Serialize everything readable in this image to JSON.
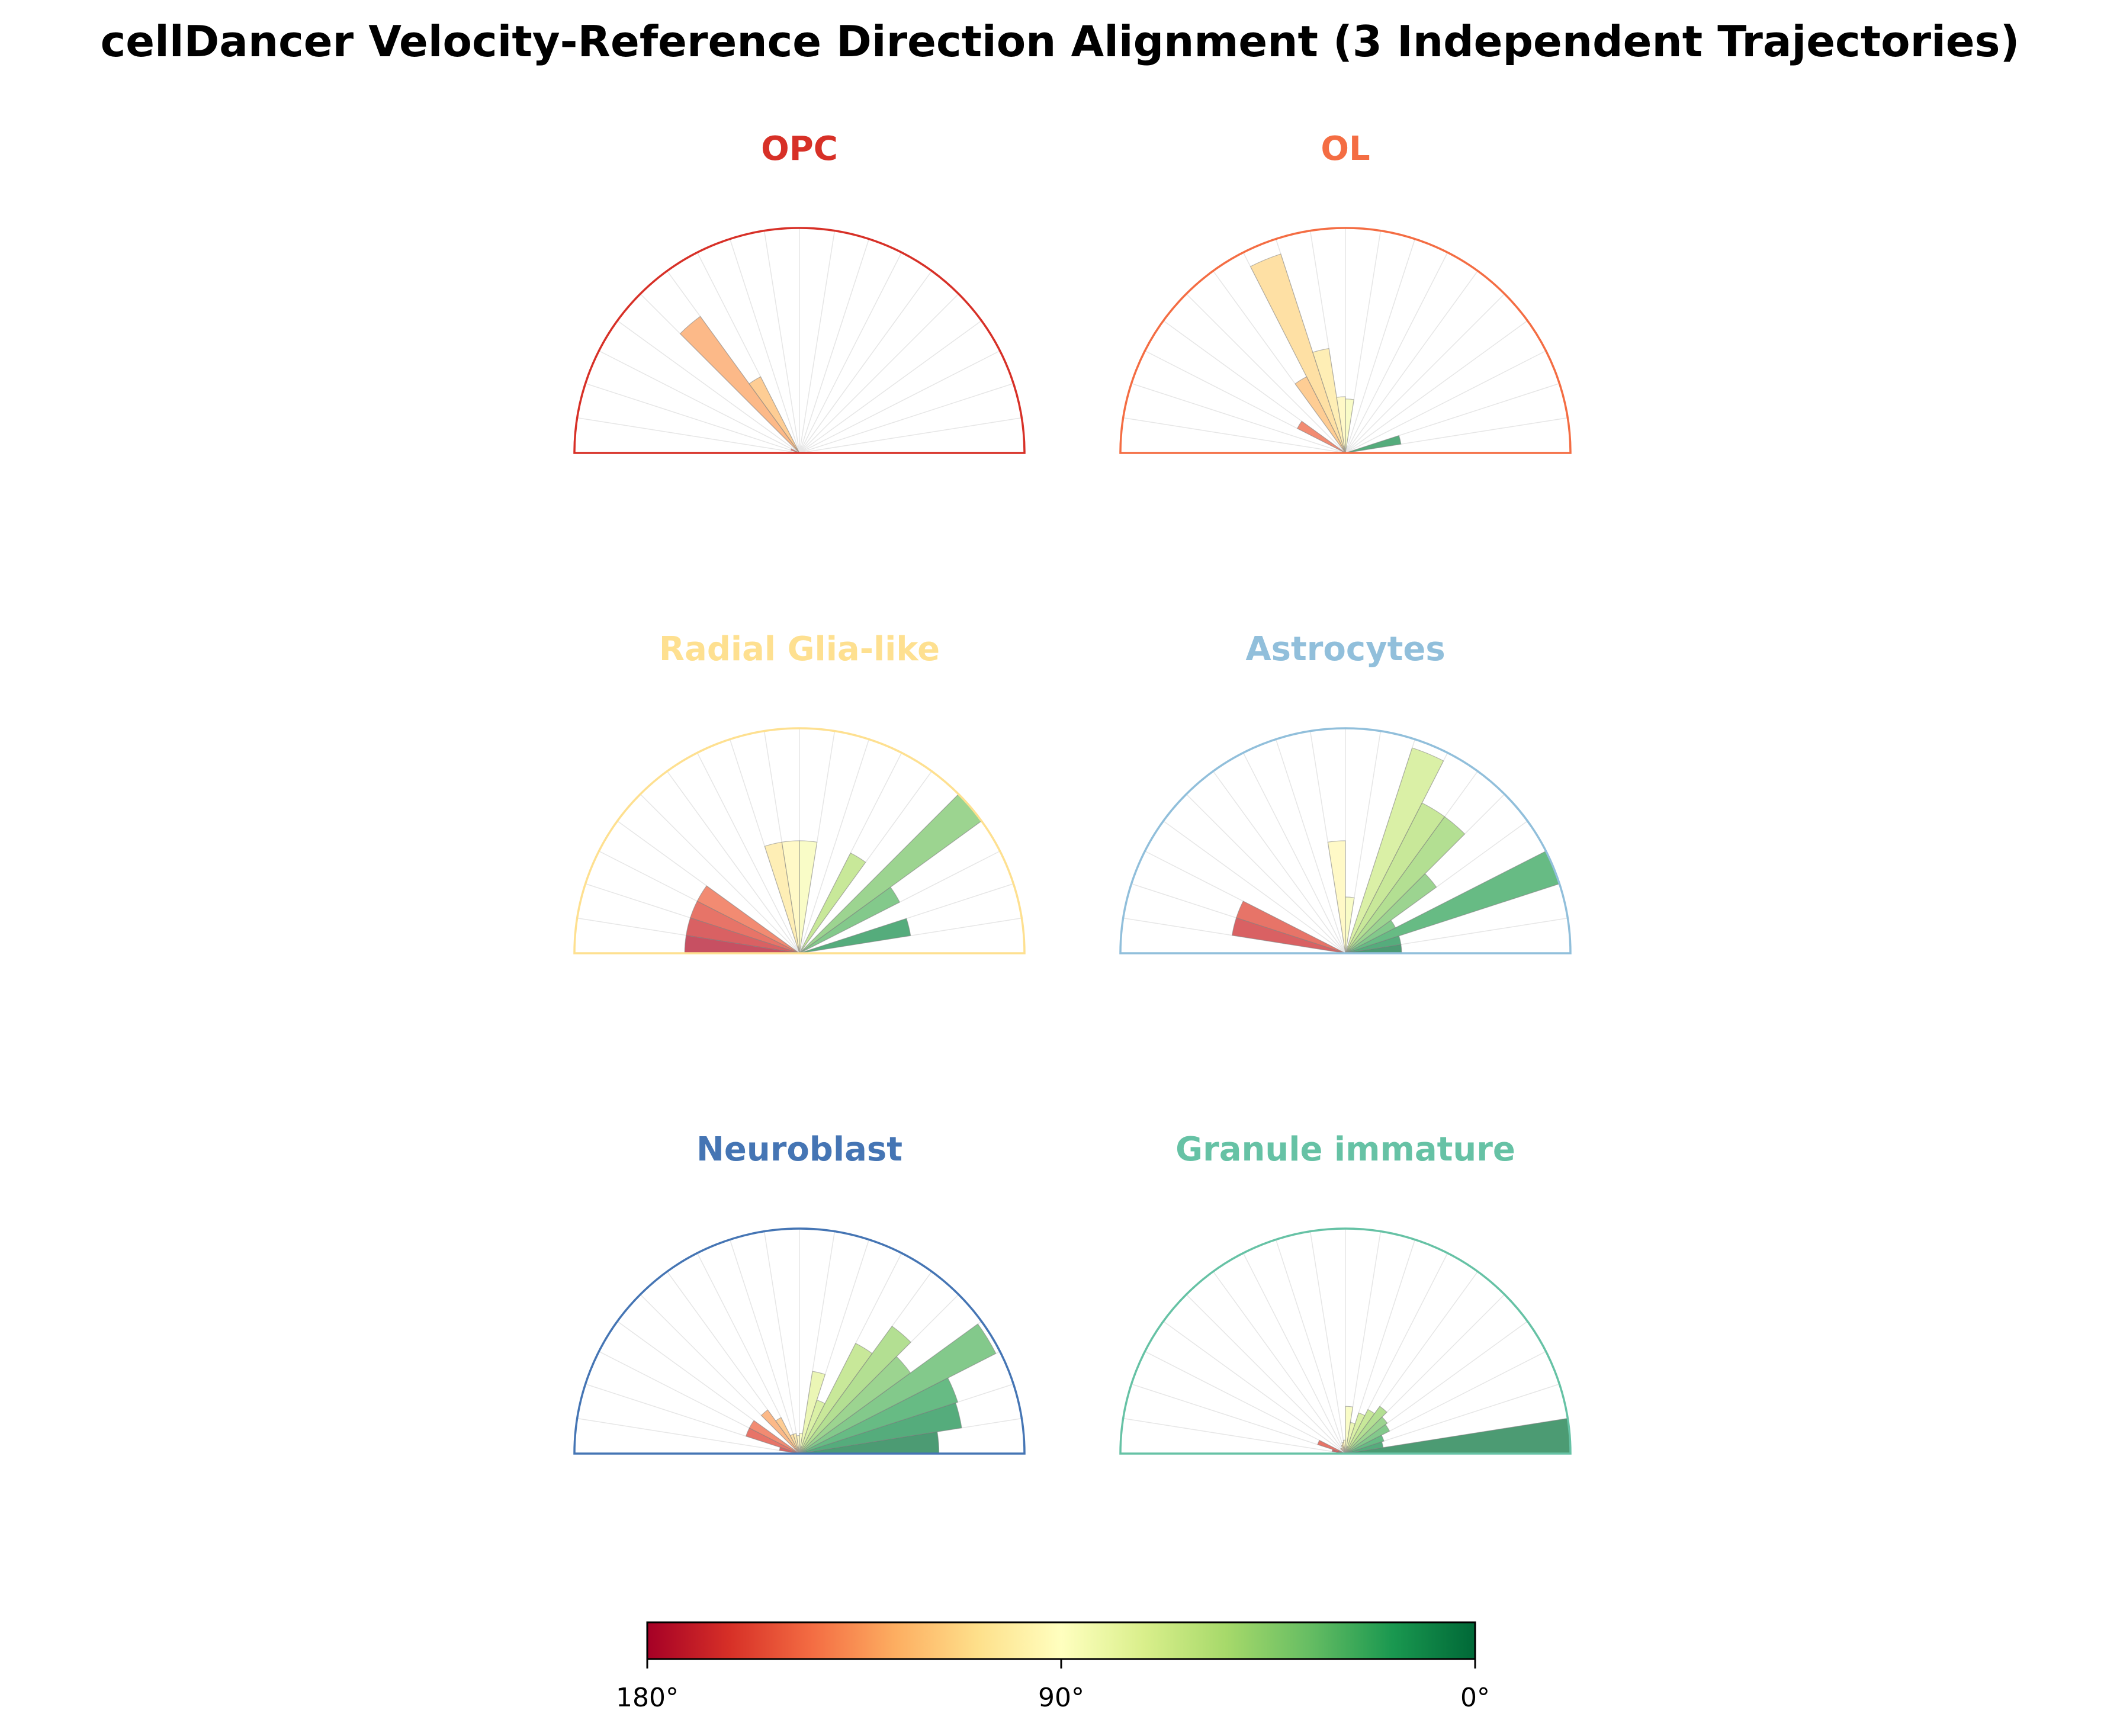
{
  "chart_data": {
    "type": "polar-histogram",
    "title": "cellDancer Velocity-Reference Direction Alignment (3 Independent Trajectories)",
    "angle_unit": "degrees",
    "angle_range": [
      0,
      180
    ],
    "bin_width": 9,
    "colormap": "RdYlGn (0° = green, 90° = yellow, 180° = red)",
    "colorbar": {
      "ticks": [
        "180°",
        "90°",
        "0°"
      ]
    },
    "panels": [
      {
        "name": "OPC",
        "color": "#d73027",
        "bins": [
          {
            "angle": 130.5,
            "value": 0.75
          },
          {
            "angle": 121.5,
            "value": 0.38
          },
          {
            "angle": 157.5,
            "value": 0.04
          }
        ]
      },
      {
        "name": "OL",
        "color": "#f46d43",
        "bins": [
          {
            "angle": 112.5,
            "value": 0.93
          },
          {
            "angle": 103.5,
            "value": 0.47
          },
          {
            "angle": 121.5,
            "value": 0.38
          },
          {
            "angle": 94.5,
            "value": 0.25
          },
          {
            "angle": 85.5,
            "value": 0.24
          },
          {
            "angle": 148.5,
            "value": 0.24
          },
          {
            "angle": 13.5,
            "value": 0.25
          }
        ]
      },
      {
        "name": "Radial Glia-like",
        "color": "#fee090",
        "bins": [
          {
            "angle": 175.5,
            "value": 0.51
          },
          {
            "angle": 166.5,
            "value": 0.51
          },
          {
            "angle": 157.5,
            "value": 0.51
          },
          {
            "angle": 148.5,
            "value": 0.51
          },
          {
            "angle": 103.5,
            "value": 0.5
          },
          {
            "angle": 94.5,
            "value": 0.5
          },
          {
            "angle": 85.5,
            "value": 0.5
          },
          {
            "angle": 58.5,
            "value": 0.5
          },
          {
            "angle": 40.5,
            "value": 1.0
          },
          {
            "angle": 31.5,
            "value": 0.5
          },
          {
            "angle": 13.5,
            "value": 0.5
          }
        ]
      },
      {
        "name": "Astrocytes",
        "color": "#91bfdb",
        "bins": [
          {
            "angle": 166.5,
            "value": 0.51
          },
          {
            "angle": 157.5,
            "value": 0.51
          },
          {
            "angle": 94.5,
            "value": 0.5
          },
          {
            "angle": 85.5,
            "value": 0.25
          },
          {
            "angle": 67.5,
            "value": 0.96
          },
          {
            "angle": 58.5,
            "value": 0.75
          },
          {
            "angle": 49.5,
            "value": 0.75
          },
          {
            "angle": 40.5,
            "value": 0.5
          },
          {
            "angle": 31.5,
            "value": 0.25
          },
          {
            "angle": 22.5,
            "value": 1.0
          },
          {
            "angle": 13.5,
            "value": 0.25
          },
          {
            "angle": 4.5,
            "value": 0.25
          }
        ]
      },
      {
        "name": "Neuroblast",
        "color": "#4575b4",
        "bins": [
          {
            "angle": 175.5,
            "value": 0.02
          },
          {
            "angle": 166.5,
            "value": 0.09
          },
          {
            "angle": 157.5,
            "value": 0.25
          },
          {
            "angle": 148.5,
            "value": 0.25
          },
          {
            "angle": 130.5,
            "value": 0.24
          },
          {
            "angle": 121.5,
            "value": 0.18
          },
          {
            "angle": 112.5,
            "value": 0.09
          },
          {
            "angle": 103.5,
            "value": 0.09
          },
          {
            "angle": 94.5,
            "value": 0.08
          },
          {
            "angle": 85.5,
            "value": 0.09
          },
          {
            "angle": 76.5,
            "value": 0.37
          },
          {
            "angle": 67.5,
            "value": 0.25
          },
          {
            "angle": 58.5,
            "value": 0.55
          },
          {
            "angle": 49.5,
            "value": 0.7
          },
          {
            "angle": 40.5,
            "value": 0.61
          },
          {
            "angle": 31.5,
            "value": 0.98
          },
          {
            "angle": 22.5,
            "value": 0.74
          },
          {
            "angle": 13.5,
            "value": 0.73
          },
          {
            "angle": 4.5,
            "value": 0.62
          }
        ]
      },
      {
        "name": "Granule immature",
        "color": "#66c2a5",
        "bins": [
          {
            "angle": 157.5,
            "value": 0.13
          },
          {
            "angle": 166.5,
            "value": 0.06
          },
          {
            "angle": 175.5,
            "value": 0.04
          },
          {
            "angle": 130.5,
            "value": 0.03
          },
          {
            "angle": 112.5,
            "value": 0.04
          },
          {
            "angle": 103.5,
            "value": 0.05
          },
          {
            "angle": 94.5,
            "value": 0.06
          },
          {
            "angle": 85.5,
            "value": 0.21
          },
          {
            "angle": 76.5,
            "value": 0.14
          },
          {
            "angle": 67.5,
            "value": 0.19
          },
          {
            "angle": 58.5,
            "value": 0.22
          },
          {
            "angle": 49.5,
            "value": 0.26
          },
          {
            "angle": 40.5,
            "value": 0.23
          },
          {
            "angle": 31.5,
            "value": 0.22
          },
          {
            "angle": 22.5,
            "value": 0.18
          },
          {
            "angle": 13.5,
            "value": 0.17
          },
          {
            "angle": 4.5,
            "value": 1.0
          }
        ]
      }
    ]
  }
}
